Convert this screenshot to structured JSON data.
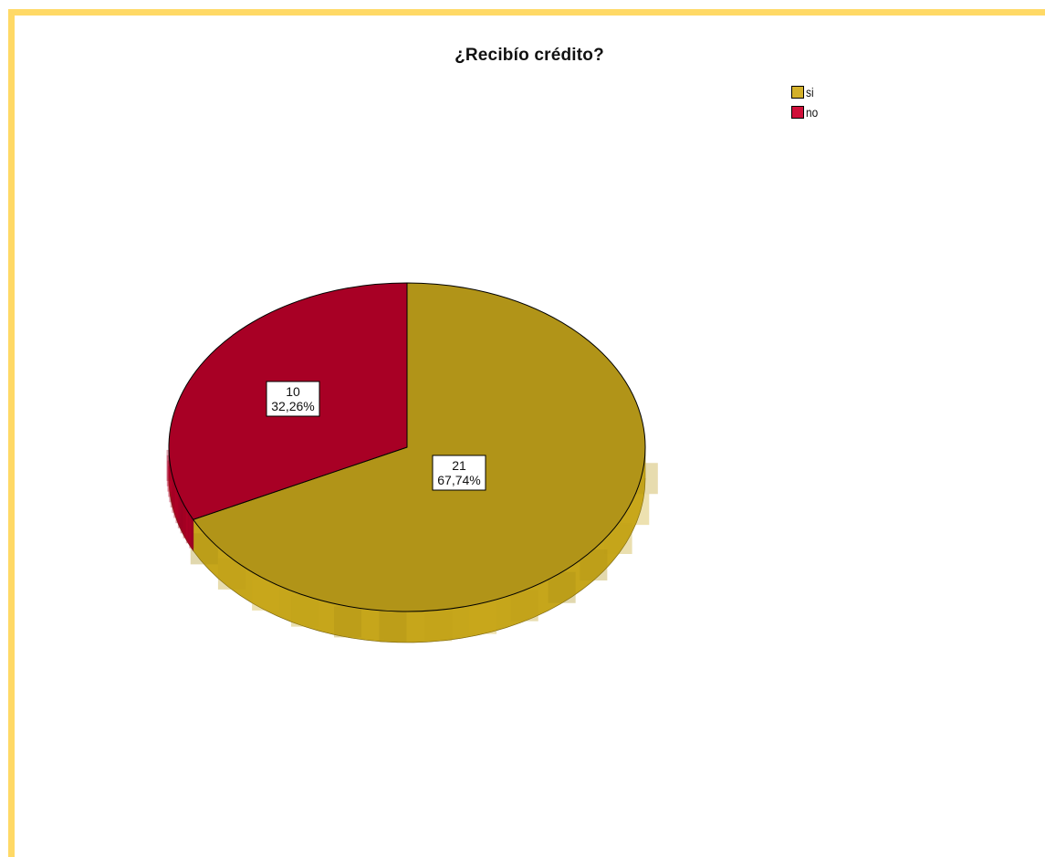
{
  "chart_data": {
    "type": "pie",
    "title": "¿Recibío crédito?",
    "categories": [
      "si",
      "no"
    ],
    "values": [
      21,
      10
    ],
    "percentages": [
      "67,74%",
      "32,26%"
    ],
    "colors": [
      "#b19418",
      "#a80025"
    ],
    "legend_colors": [
      "#d4b12a",
      "#d0103a"
    ],
    "legend_position": "top-right",
    "style": "3d"
  }
}
